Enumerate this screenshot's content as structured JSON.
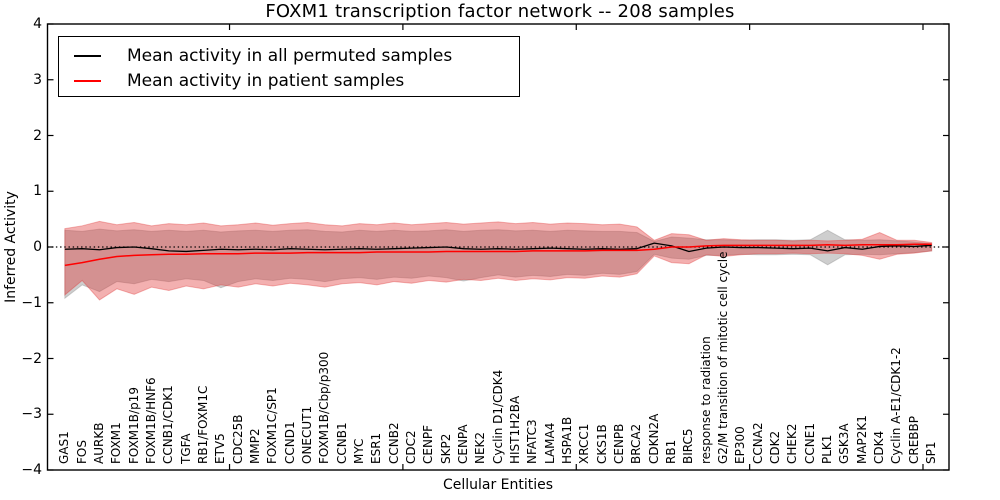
{
  "chart_data": {
    "type": "line",
    "title": "FOXM1 transcription factor network -- 208 samples",
    "xlabel": "Cellular Entities",
    "ylabel": "Inferred Activity",
    "ylim": [
      -4,
      4
    ],
    "yticks": [
      -4,
      -3,
      -2,
      -1,
      0,
      1,
      2,
      3,
      4
    ],
    "grid": false,
    "legend_position": "upper left",
    "zero_line": {
      "y": 0,
      "style": "dotted",
      "color": "#000000"
    },
    "categories": [
      "GAS1",
      "FOS",
      "AURKB",
      "FOXM1",
      "FOXM1B/p19",
      "FOXM1B/HNF6",
      "CCNB1/CDK1",
      "TGFA",
      "RB1/FOXM1C",
      "ETV5",
      "CDC25B",
      "MMP2",
      "FOXM1C/SP1",
      "CCND1",
      "ONECUT1",
      "FOXM1B/Cbp/p300",
      "CCNB1",
      "MYC",
      "ESR1",
      "CCNB2",
      "CDC2",
      "CENPF",
      "SKP2",
      "CENPA",
      "NEK2",
      "Cyclin D1/CDK4",
      "HIST1H2BA",
      "NFATC3",
      "LAMA4",
      "HSPA1B",
      "XRCC1",
      "CKS1B",
      "CENPB",
      "BRCA2",
      "CDKN2A",
      "RB1",
      "BIRC5",
      "response to radiation",
      "G2/M transition of mitotic cell cycle",
      "EP300",
      "CCNA2",
      "CDK2",
      "CHEK2",
      "CCNE1",
      "PLK1",
      "GSK3A",
      "MAP2K1",
      "CDK4",
      "Cyclin A-E1/CDK1-2",
      "CREBBP",
      "SP1"
    ],
    "series": [
      {
        "name": "Mean activity in all permuted samples",
        "color": "#000000",
        "line_width": 1.3,
        "band_color": "#8a8a8a",
        "band_alpha": 0.42,
        "values": [
          -0.04,
          -0.03,
          -0.05,
          -0.01,
          0.0,
          -0.03,
          -0.07,
          -0.08,
          -0.06,
          -0.04,
          -0.05,
          -0.04,
          -0.05,
          -0.03,
          -0.04,
          -0.05,
          -0.04,
          -0.03,
          -0.04,
          -0.03,
          -0.02,
          -0.01,
          0.0,
          -0.03,
          -0.04,
          -0.03,
          -0.04,
          -0.03,
          -0.02,
          -0.03,
          -0.04,
          -0.03,
          -0.04,
          -0.03,
          0.07,
          0.02,
          -0.08,
          -0.02,
          0.0,
          -0.01,
          -0.01,
          -0.02,
          -0.03,
          -0.02,
          -0.07,
          -0.01,
          -0.04,
          0.01,
          0.02,
          0.01,
          0.03
        ],
        "band_upper": [
          0.3,
          0.28,
          0.32,
          0.29,
          0.31,
          0.28,
          0.3,
          0.28,
          0.3,
          0.27,
          0.29,
          0.3,
          0.28,
          0.3,
          0.31,
          0.28,
          0.27,
          0.3,
          0.28,
          0.3,
          0.28,
          0.29,
          0.31,
          0.28,
          0.3,
          0.31,
          0.29,
          0.3,
          0.28,
          0.3,
          0.29,
          0.28,
          0.28,
          0.26,
          0.1,
          0.18,
          0.16,
          0.13,
          0.13,
          0.12,
          0.13,
          0.13,
          0.12,
          0.13,
          0.3,
          0.13,
          0.12,
          0.13,
          0.11,
          0.09,
          0.06
        ],
        "band_lower": [
          -0.92,
          -0.68,
          -0.8,
          -0.62,
          -0.66,
          -0.58,
          -0.62,
          -0.57,
          -0.6,
          -0.73,
          -0.62,
          -0.57,
          -0.6,
          -0.56,
          -0.58,
          -0.62,
          -0.57,
          -0.55,
          -0.58,
          -0.54,
          -0.56,
          -0.52,
          -0.55,
          -0.61,
          -0.55,
          -0.5,
          -0.54,
          -0.51,
          -0.53,
          -0.49,
          -0.51,
          -0.47,
          -0.49,
          -0.44,
          -0.13,
          -0.2,
          -0.22,
          -0.15,
          -0.15,
          -0.13,
          -0.14,
          -0.14,
          -0.13,
          -0.14,
          -0.32,
          -0.14,
          -0.13,
          -0.14,
          -0.12,
          -0.1,
          -0.07
        ]
      },
      {
        "name": "Mean activity in patient samples",
        "color": "#ff0000",
        "line_width": 1.5,
        "band_color": "#e03030",
        "band_alpha": 0.38,
        "values": [
          -0.33,
          -0.28,
          -0.22,
          -0.17,
          -0.15,
          -0.14,
          -0.13,
          -0.13,
          -0.12,
          -0.12,
          -0.12,
          -0.11,
          -0.11,
          -0.11,
          -0.1,
          -0.1,
          -0.1,
          -0.1,
          -0.09,
          -0.09,
          -0.09,
          -0.09,
          -0.08,
          -0.08,
          -0.08,
          -0.08,
          -0.08,
          -0.07,
          -0.07,
          -0.07,
          -0.07,
          -0.06,
          -0.06,
          -0.06,
          -0.04,
          0.0,
          0.0,
          0.02,
          0.03,
          0.03,
          0.03,
          0.03,
          0.03,
          0.03,
          0.04,
          0.03,
          0.04,
          0.04,
          0.04,
          0.05,
          0.05
        ],
        "band_upper": [
          0.33,
          0.38,
          0.46,
          0.4,
          0.44,
          0.38,
          0.42,
          0.4,
          0.43,
          0.38,
          0.4,
          0.43,
          0.39,
          0.42,
          0.44,
          0.4,
          0.38,
          0.42,
          0.4,
          0.43,
          0.4,
          0.42,
          0.44,
          0.41,
          0.43,
          0.45,
          0.42,
          0.44,
          0.41,
          0.43,
          0.42,
          0.4,
          0.41,
          0.36,
          0.12,
          0.24,
          0.22,
          0.12,
          0.15,
          0.13,
          0.12,
          0.12,
          0.11,
          0.12,
          0.11,
          0.12,
          0.14,
          0.26,
          0.12,
          0.12,
          0.08
        ],
        "band_lower": [
          -0.86,
          -0.6,
          -0.95,
          -0.75,
          -0.85,
          -0.72,
          -0.78,
          -0.7,
          -0.75,
          -0.68,
          -0.72,
          -0.66,
          -0.7,
          -0.65,
          -0.68,
          -0.72,
          -0.66,
          -0.64,
          -0.68,
          -0.62,
          -0.65,
          -0.6,
          -0.63,
          -0.58,
          -0.6,
          -0.56,
          -0.6,
          -0.57,
          -0.59,
          -0.55,
          -0.56,
          -0.52,
          -0.54,
          -0.48,
          -0.16,
          -0.28,
          -0.3,
          -0.14,
          -0.17,
          -0.14,
          -0.12,
          -0.12,
          -0.11,
          -0.12,
          -0.11,
          -0.12,
          -0.15,
          -0.22,
          -0.13,
          -0.11,
          -0.07
        ]
      }
    ]
  }
}
